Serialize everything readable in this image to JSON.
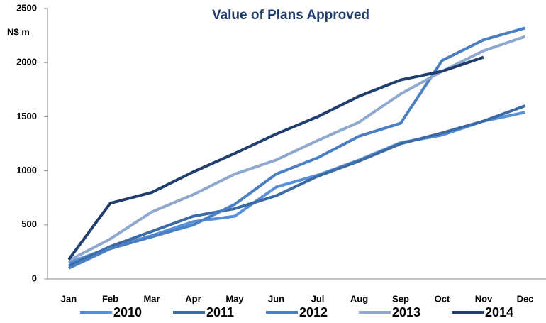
{
  "chart_data": {
    "type": "line",
    "title": "Value of Plans Approved",
    "y_label": "N$ m",
    "categories": [
      "Jan",
      "Feb",
      "Mar",
      "Apr",
      "May",
      "Jun",
      "Jul",
      "Aug",
      "Sep",
      "Oct",
      "Nov",
      "Dec"
    ],
    "series": [
      {
        "name": "2010",
        "color": "#5590d8",
        "values": [
          150,
          290,
          400,
          530,
          580,
          850,
          960,
          1100,
          1260,
          1330,
          1460,
          1540
        ]
      },
      {
        "name": "2011",
        "color": "#3b6aa5",
        "values": [
          120,
          300,
          440,
          580,
          650,
          770,
          950,
          1090,
          1250,
          1350,
          1460,
          1600
        ]
      },
      {
        "name": "2012",
        "color": "#4a7fc4",
        "values": [
          100,
          280,
          390,
          500,
          690,
          970,
          1120,
          1320,
          1440,
          2020,
          2210,
          2320
        ]
      },
      {
        "name": "2013",
        "color": "#8fa8d0",
        "values": [
          170,
          370,
          620,
          780,
          970,
          1100,
          1280,
          1450,
          1710,
          1920,
          2110,
          2240
        ]
      },
      {
        "name": "2014",
        "color": "#203f6e",
        "values": [
          180,
          700,
          800,
          990,
          1160,
          1340,
          1500,
          1690,
          1840,
          1920,
          2050,
          null
        ]
      }
    ],
    "ylim": [
      0,
      2500
    ],
    "yticks": [
      0,
      500,
      1000,
      1500,
      2000,
      2500
    ],
    "grid": false,
    "legend": "bottom"
  }
}
